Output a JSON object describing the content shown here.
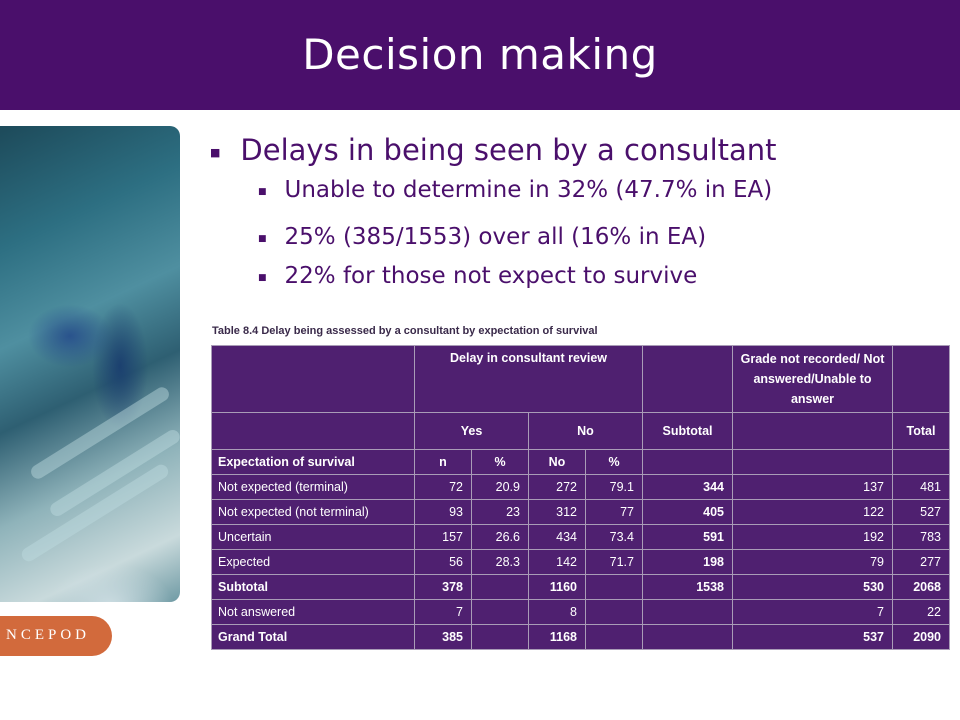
{
  "slide": {
    "title": "Decision making"
  },
  "bullets": {
    "main": "Delays in being seen by a consultant",
    "sub": [
      "Unable to determine in 32% (47.7% in EA)",
      "25% (385/1553) over all (16% in EA)",
      "22% for those not expect to survive"
    ]
  },
  "logo": {
    "text": "NCEPOD"
  },
  "table": {
    "caption": "Table 8.4  Delay being assessed by a consultant by expectation of survival",
    "header_top": {
      "delay": "Delay in consultant review",
      "grade": "Grade not recorded/ Not answered/Unable to answer"
    },
    "header_mid": {
      "yes": "Yes",
      "no": "No",
      "subtotal": "Subtotal",
      "total": "Total"
    },
    "header_sub": {
      "label": "Expectation of survival",
      "n": "n",
      "pct1": "%",
      "no": "No",
      "pct2": "%"
    },
    "rows": [
      {
        "label": "Not expected (terminal)",
        "yes_n": "72",
        "yes_pct": "20.9",
        "no_n": "272",
        "no_pct": "79.1",
        "subtotal": "344",
        "grade": "137",
        "total": "481"
      },
      {
        "label": "Not expected (not terminal)",
        "yes_n": "93",
        "yes_pct": "23",
        "no_n": "312",
        "no_pct": "77",
        "subtotal": "405",
        "grade": "122",
        "total": "527"
      },
      {
        "label": "Uncertain",
        "yes_n": "157",
        "yes_pct": "26.6",
        "no_n": "434",
        "no_pct": "73.4",
        "subtotal": "591",
        "grade": "192",
        "total": "783"
      },
      {
        "label": "Expected",
        "yes_n": "56",
        "yes_pct": "28.3",
        "no_n": "142",
        "no_pct": "71.7",
        "subtotal": "198",
        "grade": "79",
        "total": "277"
      },
      {
        "label": "Subtotal",
        "yes_n": "378",
        "yes_pct": "",
        "no_n": "1160",
        "no_pct": "",
        "subtotal": "1538",
        "grade": "530",
        "total": "2068"
      },
      {
        "label": "Not answered",
        "yes_n": "7",
        "yes_pct": "",
        "no_n": "8",
        "no_pct": "",
        "subtotal": "",
        "grade": "7",
        "total": "22"
      },
      {
        "label": "Grand Total",
        "yes_n": "385",
        "yes_pct": "",
        "no_n": "1168",
        "no_pct": "",
        "subtotal": "",
        "grade": "537",
        "total": "2090"
      }
    ]
  },
  "colors": {
    "brand_purple": "#4a0f6b",
    "table_purple": "#4f2070",
    "logo_orange": "#d26a3c"
  }
}
